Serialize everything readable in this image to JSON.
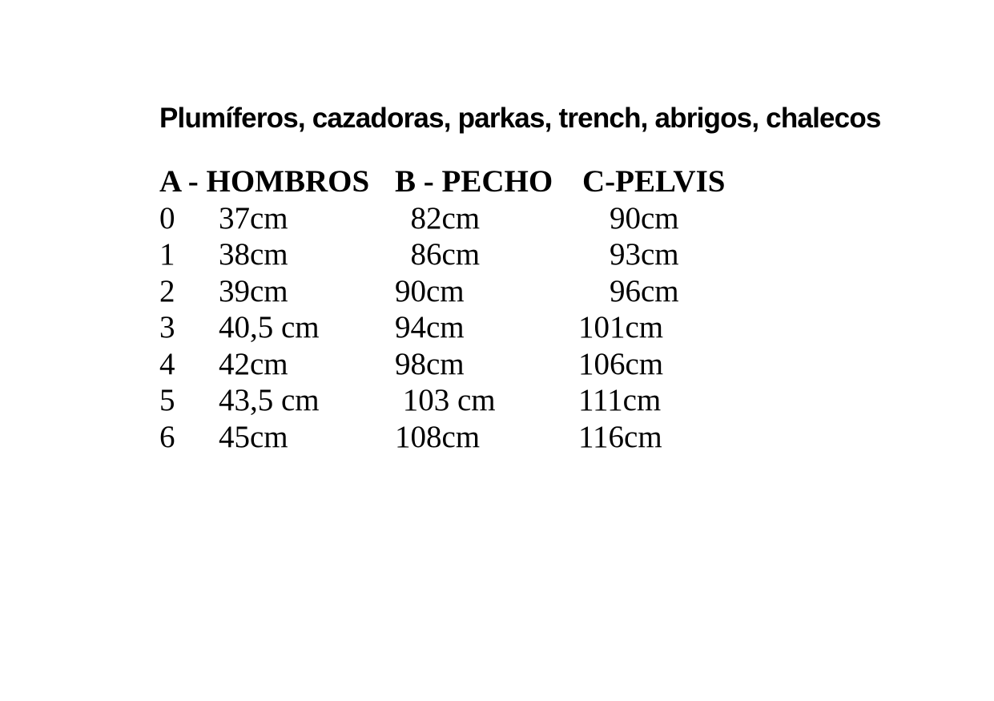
{
  "page": {
    "title": "Plumíferos, cazadoras, parkas, trench, abrigos, chalecos"
  },
  "table": {
    "headers": {
      "a": "A - HOMBROS",
      "b": "B - PECHO",
      "c": "C-PELVIS"
    },
    "rows": [
      {
        "size": "0",
        "hombros": "37cm",
        "pecho": "  82cm",
        "pelvis": "    90cm"
      },
      {
        "size": "1",
        "hombros": "38cm",
        "pecho": "  86cm",
        "pelvis": "    93cm"
      },
      {
        "size": "2",
        "hombros": "39cm",
        "pecho": "90cm",
        "pelvis": "    96cm"
      },
      {
        "size": "3",
        "hombros": "40,5 cm",
        "pecho": "94cm",
        "pelvis": "101cm"
      },
      {
        "size": "4",
        "hombros": "42cm",
        "pecho": "98cm",
        "pelvis": "106cm"
      },
      {
        "size": "5",
        "hombros": "43,5 cm",
        "pecho": " 103 cm",
        "pelvis": "111cm"
      },
      {
        "size": "6",
        "hombros": "45cm",
        "pecho": "108cm",
        "pelvis": "116cm"
      }
    ]
  }
}
